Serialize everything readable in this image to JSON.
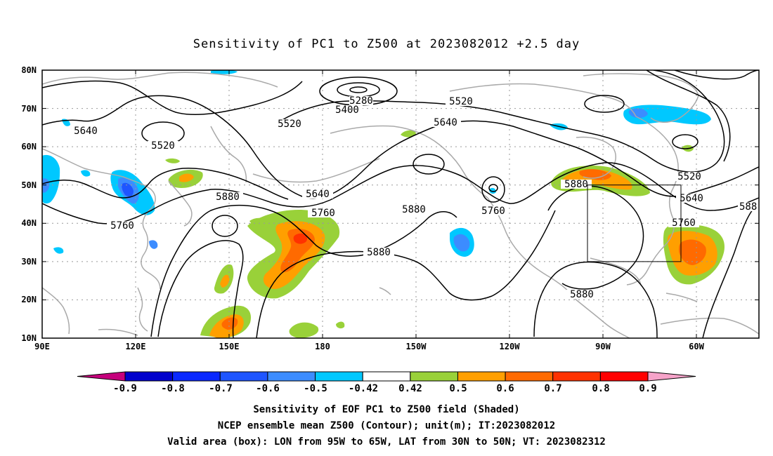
{
  "title": "Sensitivity of PC1 to Z500 at 2023082012 +2.5 day",
  "map": {
    "lat_ticks": [
      "80N",
      "70N",
      "60N",
      "50N",
      "40N",
      "30N",
      "20N",
      "10N"
    ],
    "lon_ticks": [
      "90E",
      "120E",
      "150E",
      "180",
      "150W",
      "120W",
      "90W",
      "60W"
    ],
    "contour_labels": [
      "5280",
      "5400",
      "5520",
      "5520",
      "5520",
      "5520",
      "5640",
      "5640",
      "5640",
      "5640",
      "5640",
      "5760",
      "5760",
      "5760",
      "5760",
      "5880",
      "5880",
      "5880",
      "5880",
      "5880",
      "588"
    ],
    "valid_box": {
      "lon_from": "95W",
      "lon_to": "65W",
      "lat_from": "30N",
      "lat_to": "50N"
    },
    "colors": {
      "coastline": "#a9a9a9",
      "contour": "#000000",
      "grid": "#999999"
    }
  },
  "colorbar": {
    "labels": [
      "-0.9",
      "-0.8",
      "-0.7",
      "-0.6",
      "-0.5",
      "-0.42",
      "0.42",
      "0.5",
      "0.6",
      "0.7",
      "0.8",
      "0.9"
    ],
    "colors": [
      "#c5007c",
      "#0000cc",
      "#0a28ff",
      "#1e55ff",
      "#3c8cff",
      "#00c8ff",
      "#ffffff",
      "#99d139",
      "#ff9f00",
      "#ff6a00",
      "#ff3200",
      "#ff0000",
      "#f6a3c9"
    ]
  },
  "caption": {
    "line1": "Sensitivity of EOF PC1 to Z500 field (Shaded)",
    "line2": "NCEP ensemble mean Z500 (Contour); unit(m); IT:2023082012",
    "line3": "Valid area (box): LON from 95W to 65W, LAT from 30N to 50N; VT: 2023082312"
  }
}
